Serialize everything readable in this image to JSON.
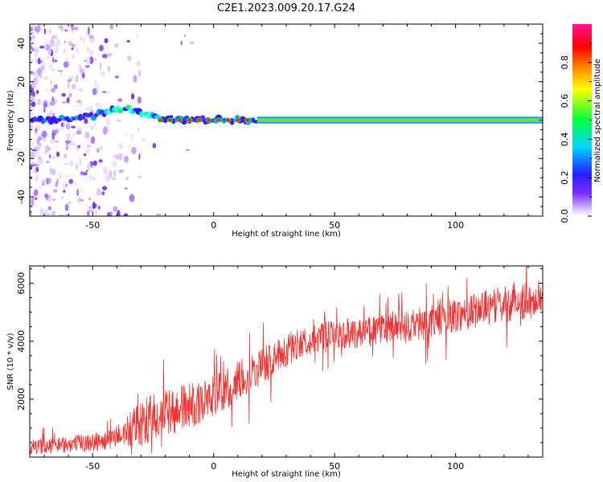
{
  "figure": {
    "title": "C2E1.2023.009.20.17.G24"
  },
  "chart_data": [
    {
      "type": "heatmap",
      "title": "C2E1.2023.009.20.17.G24",
      "xlabel": "Height of straight line (km)",
      "ylabel": "Frequency (Hz)",
      "xlim": [
        -76,
        136
      ],
      "ylim": [
        -50,
        50
      ],
      "x_ticks": [
        -50,
        0,
        50,
        100
      ],
      "y_ticks": [
        -40,
        -20,
        0,
        20,
        40
      ],
      "grid": false,
      "colorbar": {
        "label": "Normalized spectral amplitude",
        "range": [
          0.0,
          1.0
        ],
        "ticks": [
          0.0,
          0.2,
          0.4,
          0.6,
          0.8
        ],
        "colormap": [
          "#ffffff",
          "#c9a8ff",
          "#7a2cff",
          "#2020ff",
          "#00d8ff",
          "#00ff40",
          "#ffff00",
          "#ff8000",
          "#ff0000",
          "#ff1493"
        ]
      },
      "ridge": {
        "description_points_x": [
          -76,
          -70,
          -60,
          -50,
          -45,
          -40,
          -35,
          -30,
          -25,
          -20,
          -10,
          0,
          10,
          20,
          60,
          100,
          136
        ],
        "description_points_y": [
          0,
          0,
          1,
          2,
          4,
          6,
          6,
          4,
          2,
          1,
          0,
          0,
          0,
          0,
          0,
          0,
          0
        ],
        "strong_from_x": 18
      }
    },
    {
      "type": "line",
      "xlabel": "Height of straight line (km)",
      "ylabel": "SNR (10 * v/v)",
      "xlim": [
        -76,
        136
      ],
      "ylim": [
        0,
        6600
      ],
      "x_ticks": [
        -50,
        0,
        50,
        100
      ],
      "y_ticks": [
        2000,
        4000,
        6000
      ],
      "grid": false,
      "color": "#ee3333",
      "trend": {
        "x": [
          -76,
          -60,
          -45,
          -35,
          -25,
          -15,
          -5,
          5,
          15,
          25,
          35,
          45,
          55,
          70,
          85,
          100,
          115,
          125,
          136
        ],
        "y": [
          350,
          450,
          550,
          900,
          1300,
          1600,
          1900,
          2300,
          2900,
          3400,
          3900,
          4150,
          4250,
          4400,
          4550,
          4900,
          5200,
          5350,
          5500
        ]
      },
      "noise_amplitude": [
        {
          "x": -76,
          "amp": 250
        },
        {
          "x": -40,
          "amp": 350
        },
        {
          "x": -30,
          "amp": 900
        },
        {
          "x": 10,
          "amp": 700
        },
        {
          "x": 40,
          "amp": 500
        },
        {
          "x": 136,
          "amp": 650
        }
      ]
    }
  ]
}
